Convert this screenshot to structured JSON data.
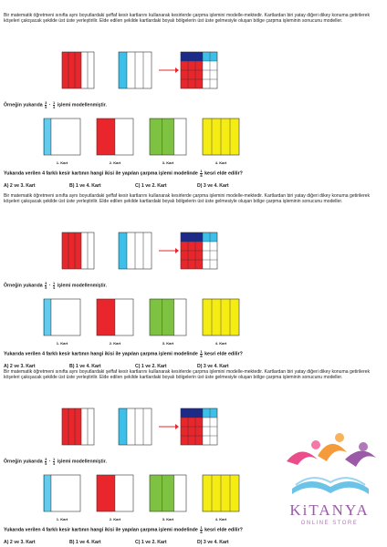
{
  "problem": {
    "paragraph": "Bir matematik öğretmeni sınıfta aynı boyutlardaki şeffaf kesir kartlarını kullanarak kesirlerde çarpma işlemini modelle-mektedir. Kartlardan biri yatay diğeri dikey konuma getirilerek köşeleri çakışacak şekilde üst üste yerleştirilir. Elde edilen şekilde kartlardaki boyalı bölgelerin üst üste gelmesiyle oluşan bölge çarpma işleminin sonucunu modeller.",
    "example_prefix": "Örneğin yukarıda",
    "example_suffix": "işlemi modellenmiştir.",
    "fraction1": {
      "num": "3",
      "den": "5"
    },
    "fraction2": {
      "num": "1",
      "den": "4"
    },
    "cards": [
      "1. Kart",
      "2. Kart",
      "3. Kart",
      "4. Kart"
    ],
    "question_prefix": "Yukarıda verilen 4 farklı kesir kartının hangi ikisi ile yapılan çarpma işlemi modelinde",
    "question_fraction": {
      "num": "1",
      "den": "8"
    },
    "question_suffix": "kesri elde edilir?",
    "options": [
      "A) 2 ve 3. Kart",
      "B) 1 ve 4. Kart",
      "C) 1 ve 2. Kart",
      "D) 3 ve 4. Kart"
    ]
  },
  "colors": {
    "red": "#e8262b",
    "blue": "#3cc0ea",
    "green": "#7ec242",
    "yellow": "#f5ec14",
    "navy": "#1c2a8c"
  },
  "logo": {
    "name": "KiTANYA",
    "sub": "ONLINE STORE"
  }
}
